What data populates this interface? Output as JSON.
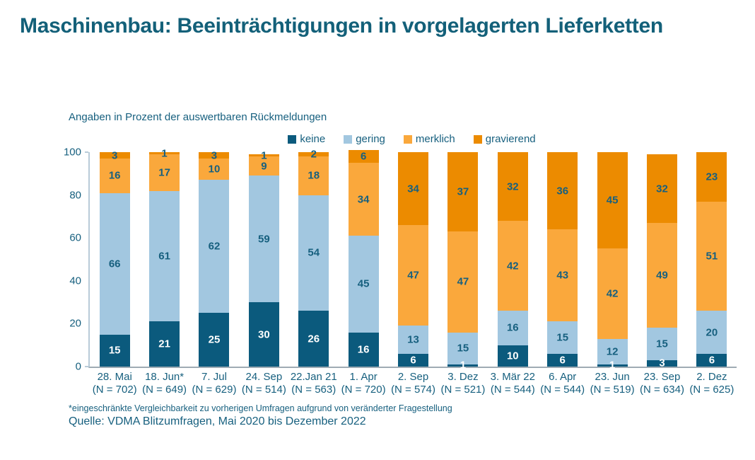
{
  "title": "Maschinenbau: Beeinträchtigungen in vorgelagerten Lieferketten",
  "subtitle": "Angaben in Prozent der auswertbaren Rückmeldungen",
  "footnote": "*eingeschränkte Vergleichbarkeit zu vorherigen Umfragen aufgrund von veränderter Fragestellung",
  "source": "Quelle: VDMA Blitzumfragen, Mai 2020 bis Dezember 2022",
  "colors": {
    "title_text": "#136079",
    "body_text": "#17607f",
    "axis_line": "#b9cbd8",
    "baseline": "#9fabb4",
    "keine": "#0b5a7d",
    "gering": "#a2c7e0",
    "merklich": "#faa83c",
    "gravierend": "#ec8b00"
  },
  "chart_data": {
    "type": "bar",
    "stacked": true,
    "unit": "percent",
    "title": "Maschinenbau: Beeinträchtigungen in vorgelagerten Lieferketten",
    "subtitle": "Angaben in Prozent der auswertbaren Rückmeldungen",
    "ylim": [
      0,
      100
    ],
    "yticks": [
      0,
      20,
      40,
      60,
      80,
      100
    ],
    "legend_position": "top",
    "grid": false,
    "categories": [
      {
        "date": "28. Mai",
        "n": "(N = 702)"
      },
      {
        "date": "18. Jun*",
        "n": "(N = 649)"
      },
      {
        "date": "7. Jul",
        "n": "(N = 629)"
      },
      {
        "date": "24. Sep",
        "n": "(N = 514)"
      },
      {
        "date": "22.Jan 21",
        "n": "(N = 563)"
      },
      {
        "date": "1. Apr",
        "n": "(N = 720)"
      },
      {
        "date": "2. Sep",
        "n": "(N = 574)"
      },
      {
        "date": "3. Dez",
        "n": "(N = 521)"
      },
      {
        "date": "3. Mär 22",
        "n": "(N = 544)"
      },
      {
        "date": "6. Apr",
        "n": "(N = 544)"
      },
      {
        "date": "23. Jun",
        "n": "(N = 519)"
      },
      {
        "date": "23. Sep",
        "n": "(N = 634)"
      },
      {
        "date": "2. Dez",
        "n": "(N = 625)"
      }
    ],
    "series": [
      {
        "name": "keine",
        "color": "#0b5a7d",
        "label_color": "#ffffff",
        "values": [
          15,
          21,
          25,
          30,
          26,
          16,
          6,
          1,
          10,
          6,
          1,
          3,
          6
        ]
      },
      {
        "name": "gering",
        "color": "#a2c7e0",
        "label_color": "#17607f",
        "values": [
          66,
          61,
          62,
          59,
          54,
          45,
          13,
          15,
          16,
          15,
          12,
          15,
          20
        ]
      },
      {
        "name": "merklich",
        "color": "#faa83c",
        "label_color": "#17607f",
        "values": [
          16,
          17,
          10,
          9,
          18,
          34,
          47,
          47,
          42,
          43,
          42,
          49,
          51
        ]
      },
      {
        "name": "gravierend",
        "color": "#ec8b00",
        "label_color": "#17607f",
        "values": [
          3,
          1,
          3,
          1,
          2,
          6,
          34,
          37,
          32,
          36,
          45,
          32,
          23
        ]
      }
    ]
  }
}
